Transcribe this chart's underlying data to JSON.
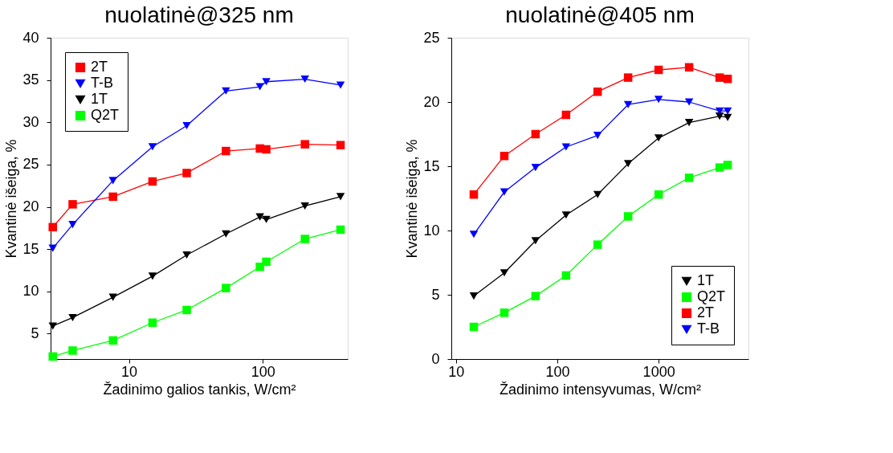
{
  "chart_data": [
    {
      "type": "line",
      "title": "nuolatinė@325 nm",
      "xlabel": "Žadinimo galios tankis, W/cm²",
      "ylabel": "Kvantinė išeiga, %",
      "log": "x",
      "xlim": [
        2.6,
        430
      ],
      "xticks": [
        10,
        100
      ],
      "ylim": [
        2,
        40
      ],
      "yticks": [
        5,
        10,
        15,
        20,
        25,
        30,
        35,
        40
      ],
      "grid": false,
      "legend": "top left",
      "line_style": "solid",
      "x": [
        2.7,
        3.8,
        7.6,
        15,
        27,
        53,
        95,
        106,
        206,
        380
      ],
      "series": [
        {
          "name": "2T",
          "color": "#ff0000",
          "marker": "square",
          "values": [
            17.6,
            20.3,
            21.2,
            23.0,
            24.0,
            26.6,
            26.9,
            26.8,
            27.4,
            27.3
          ]
        },
        {
          "name": "T-B",
          "color": "#0000ff",
          "marker": "triangle",
          "values": [
            15.1,
            17.9,
            23.1,
            27.1,
            29.6,
            33.7,
            34.2,
            34.8,
            35.1,
            34.4
          ]
        },
        {
          "name": "1T",
          "color": "#000000",
          "marker": "triangle",
          "values": [
            5.9,
            6.9,
            9.3,
            11.8,
            14.3,
            16.8,
            18.8,
            18.5,
            20.1,
            21.2
          ]
        },
        {
          "name": "Q2T",
          "color": "#00ff00",
          "marker": "square",
          "values": [
            2.3,
            3.0,
            4.2,
            6.3,
            7.8,
            10.4,
            12.9,
            13.5,
            16.2,
            17.3
          ]
        }
      ]
    },
    {
      "type": "line",
      "title": "nuolatinė@405 nm",
      "xlabel": "Žadinimo intensyvumas, W/cm²",
      "ylabel": "Kvantinė išeiga, %",
      "log": "x",
      "xlim": [
        9,
        7700
      ],
      "xticks": [
        10,
        100,
        1000
      ],
      "ylim": [
        0,
        25
      ],
      "yticks": [
        0,
        5,
        10,
        15,
        20,
        25
      ],
      "grid": false,
      "legend": "bottom right",
      "line_style": "solid",
      "x": [
        15,
        30,
        61,
        122,
        250,
        500,
        1000,
        2000,
        4000,
        4800
      ],
      "series": [
        {
          "name": "1T",
          "color": "#000000",
          "marker": "triangle",
          "values": [
            4.9,
            6.7,
            9.2,
            11.2,
            12.8,
            15.2,
            17.2,
            18.4,
            18.9,
            18.8
          ]
        },
        {
          "name": "Q2T",
          "color": "#00ff00",
          "marker": "square",
          "values": [
            2.5,
            3.6,
            4.9,
            6.5,
            8.9,
            11.1,
            12.8,
            14.1,
            14.9,
            15.1
          ]
        },
        {
          "name": "2T",
          "color": "#ff0000",
          "marker": "square",
          "values": [
            12.8,
            15.8,
            17.5,
            19.0,
            20.8,
            21.9,
            22.5,
            22.7,
            21.9,
            21.8
          ]
        },
        {
          "name": "T-B",
          "color": "#0000ff",
          "marker": "triangle",
          "values": [
            9.7,
            13.0,
            14.9,
            16.5,
            17.4,
            19.8,
            20.2,
            20.0,
            19.3,
            19.3
          ]
        }
      ]
    }
  ]
}
